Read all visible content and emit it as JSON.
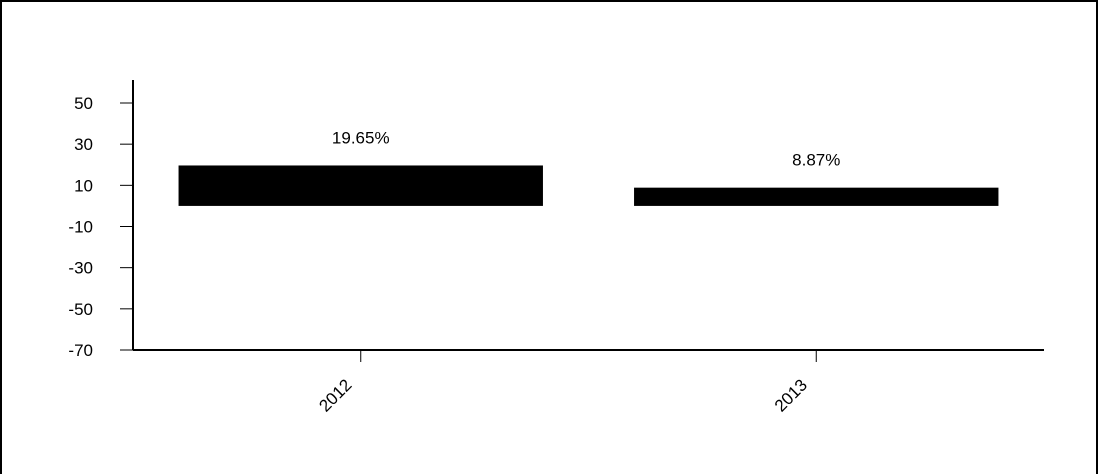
{
  "chart_data": {
    "type": "bar",
    "title": "",
    "xlabel": "",
    "ylabel": "",
    "categories": [
      "2012",
      "2013"
    ],
    "values": [
      19.65,
      8.87
    ],
    "data_labels": [
      "19.65%",
      "8.87%"
    ],
    "ylim": [
      -70,
      50
    ],
    "yticks": [
      50,
      30,
      10,
      -10,
      -30,
      -50,
      -70
    ],
    "ytick_labels": [
      "50",
      "30",
      "10",
      "-10",
      "-30",
      "-50",
      "-70"
    ],
    "grid": false,
    "legend": "none",
    "colors": {
      "bar": "#000000",
      "axis": "#000000",
      "text": "#000000"
    }
  }
}
